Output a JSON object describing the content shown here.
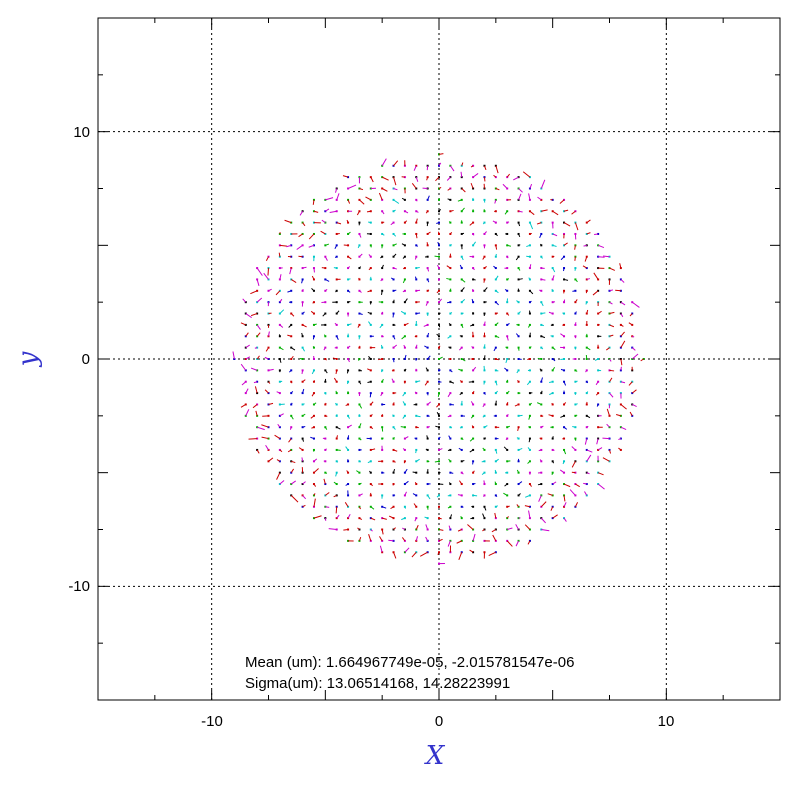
{
  "chart_data": {
    "type": "scatter",
    "subtype": "vector-field",
    "xlabel": "X",
    "ylabel": "y",
    "xlim": [
      -15,
      15
    ],
    "ylim": [
      -15,
      15
    ],
    "grid": true,
    "x_ticks": [
      {
        "value": -10,
        "label": "-10"
      },
      {
        "value": 0,
        "label": "0"
      },
      {
        "value": 10,
        "label": "10"
      }
    ],
    "y_ticks": [
      {
        "value": 10,
        "label": "10"
      },
      {
        "value": 0,
        "label": "0"
      },
      {
        "value": -10,
        "label": "-10"
      }
    ],
    "field": {
      "shape": "disk",
      "center": [
        0,
        0
      ],
      "radius": 9,
      "step": 0.5,
      "point_colors": [
        "#00c8c8",
        "#00b000",
        "#0000cc",
        "#cc00cc",
        "#cc0000",
        "#000000"
      ]
    },
    "annotations": {
      "mean_line": "Mean (um): 1.664967749e-05, -2.015781547e-06",
      "sigma_line": "Sigma(um): 13.06514168, 14.28223991"
    },
    "colors": {
      "axis_title": "#3333cc",
      "grid": "#000000"
    }
  }
}
